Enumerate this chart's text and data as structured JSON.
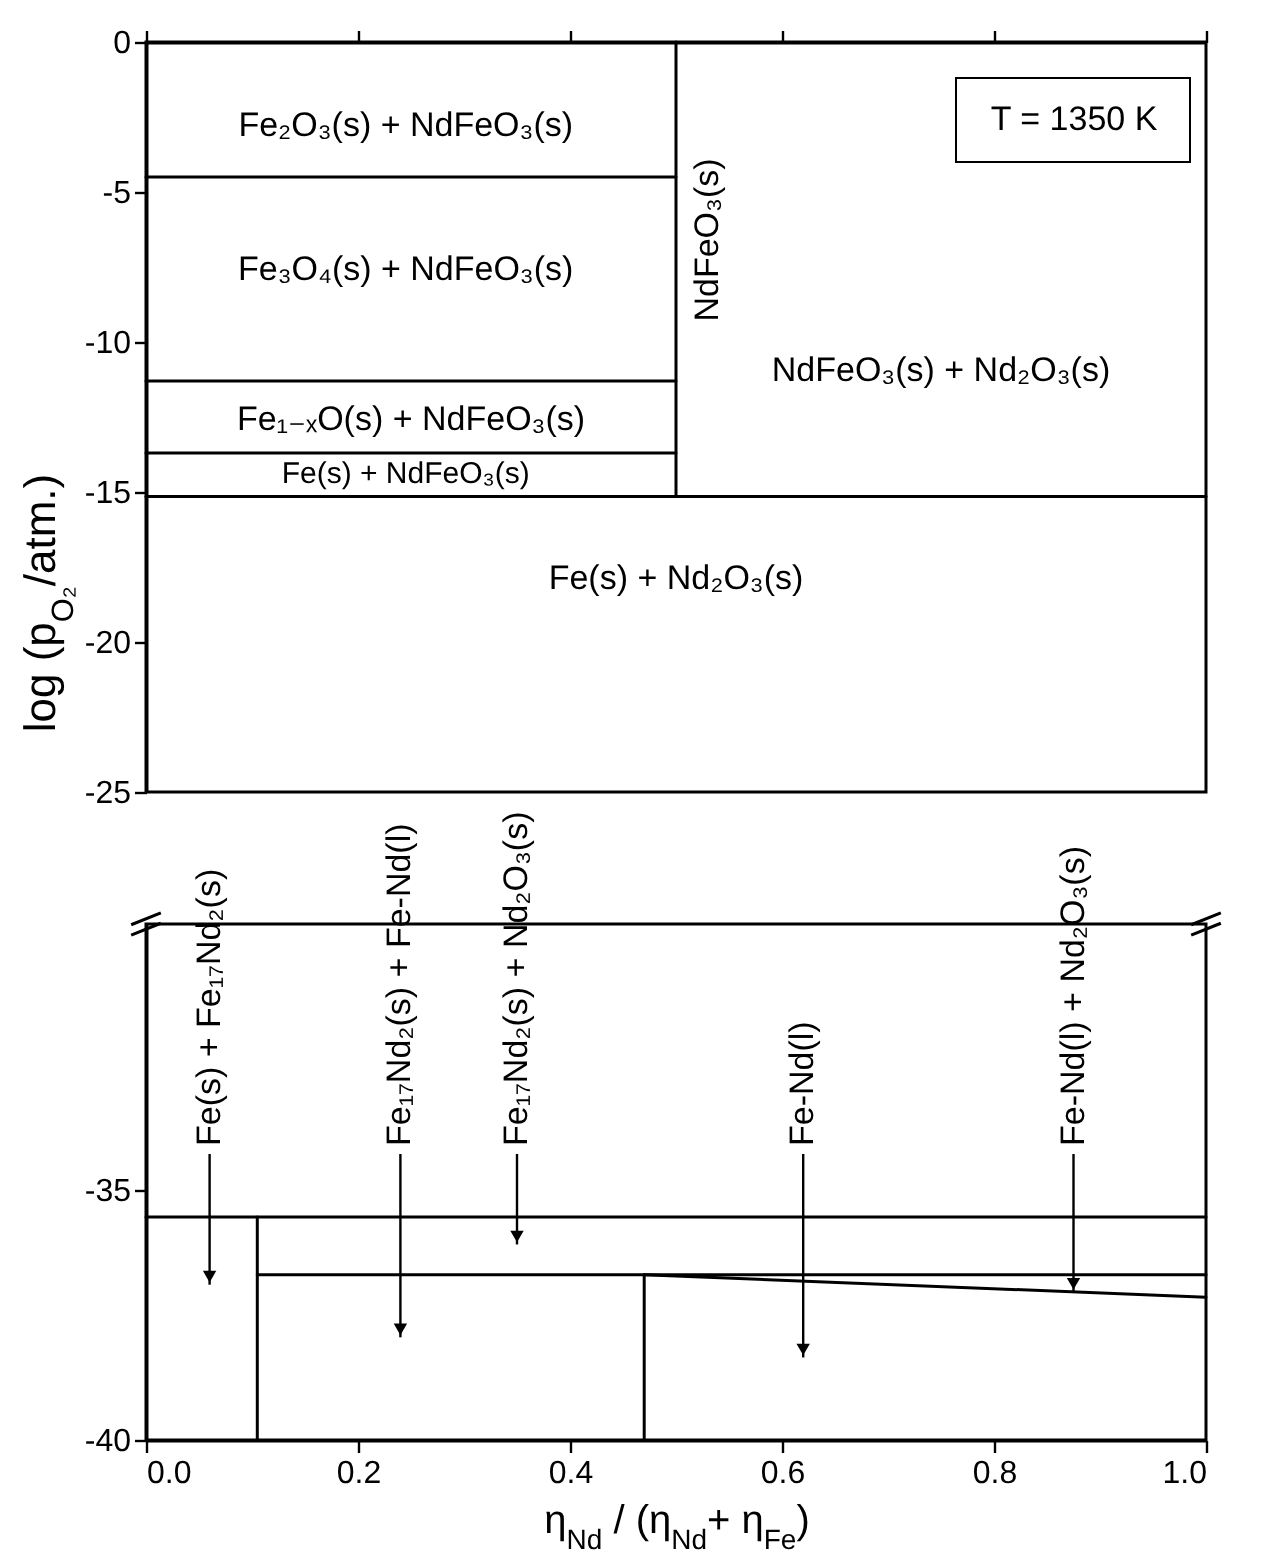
{
  "chart_data": [
    {
      "type": "line",
      "ylabel": "log (p$_{O₂}$/atm.)",
      "xlim": [
        0,
        1
      ],
      "ylim": [
        -25,
        0
      ],
      "yticks": [
        0,
        -5,
        -10,
        -15,
        -20,
        -25
      ],
      "tick_labels": "y",
      "series": [
        {
          "color": "#000000",
          "x": [
            0,
            0.5
          ],
          "values": [
            -4.5,
            -4.5
          ]
        },
        {
          "color": "#000000",
          "x": [
            0,
            0.5
          ],
          "values": [
            -11.3,
            -11.3
          ]
        },
        {
          "color": "#000000",
          "x": [
            0,
            0.5
          ],
          "values": [
            -13.7,
            -13.7
          ]
        },
        {
          "color": "#000000",
          "x": [
            0.5,
            0.5
          ],
          "values": [
            0,
            -15.15
          ]
        },
        {
          "color": "#000000",
          "x": [
            0,
            1
          ],
          "values": [
            -15.15,
            -15.15
          ]
        }
      ],
      "annotations": [
        "Fe₂O₃(s) + NdFeO₃(s)",
        "Fe₃O₄(s) + NdFeO₃(s)",
        "Fe₁₋ₓO(s) + NdFeO₃(s)",
        "Fe(s) + NdFeO₃(s)",
        "NdFeO₃(s)",
        "NdFeO₃(s) + Nd₂O₃(s)",
        "Fe(s) + Nd₂O₃(s)",
        "T = 1350 K"
      ]
    },
    {
      "type": "line",
      "xlabel": "η$_{Nd}$ / (η$_{Nd}$+ η$_{Fe}$)",
      "xlim": [
        0,
        1
      ],
      "xticks": [
        {
          "value": 0,
          "label": "0.0"
        },
        0.2,
        0.4,
        0.6,
        0.8,
        {
          "value": 1,
          "label": "1.0"
        }
      ],
      "ylim": [
        -40,
        -29.7
      ],
      "yticks": [
        -35,
        -40
      ],
      "series": [
        {
          "color": "#000000",
          "x": [
            0,
            1
          ],
          "values": [
            -35.55,
            -35.55
          ]
        },
        {
          "color": "#000000",
          "x": [
            0.105,
            1
          ],
          "values": [
            -36.7,
            -36.7
          ]
        },
        {
          "color": "#000000",
          "x": [
            0.105,
            0.105
          ],
          "values": [
            -35.55,
            -40
          ]
        },
        {
          "color": "#000000",
          "x": [
            0.47,
            0.47
          ],
          "values": [
            -36.7,
            -40
          ]
        },
        {
          "color": "#000000",
          "x": [
            0.47,
            1
          ],
          "values": [
            -36.7,
            -37.15
          ]
        }
      ],
      "annotations": [
        "Fe(s) + Fe₁₇Nd₂(s)",
        "Fe₁₇Nd₂(s) + Fe-Nd(l)",
        "Fe₁₇Nd₂(s) + Nd₂O₃(s)",
        "Fe-Nd(l)",
        {
          "text": "Fe-Nd(l) + Nd₂O₃(s)",
          "x": 0.875,
          "y": -37.04
        }
      ]
    }
  ]
}
